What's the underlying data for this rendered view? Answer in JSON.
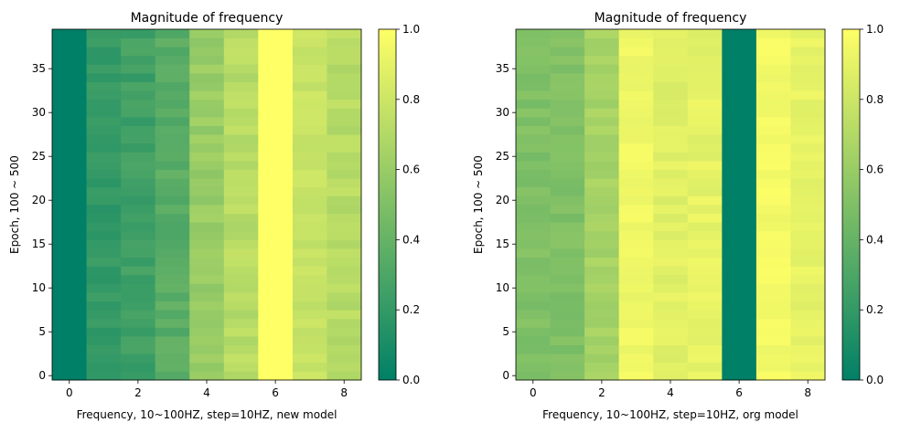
{
  "chart_data": [
    {
      "type": "heatmap",
      "title": "Magnitude of frequency",
      "xlabel": "Frequency, 10~100HZ, step=10HZ, new model",
      "ylabel": "Epoch, 100 ~ 500",
      "x_range": [
        -0.5,
        8.5
      ],
      "y_range": [
        -0.5,
        39.5
      ],
      "x_ticks": [
        0,
        2,
        4,
        6,
        8
      ],
      "y_ticks": [
        0,
        5,
        10,
        15,
        20,
        25,
        30,
        35
      ],
      "colorbar": {
        "range": [
          0,
          1
        ],
        "ticks": [
          0.0,
          0.2,
          0.4,
          0.6,
          0.8,
          1.0
        ],
        "tick_labels": [
          "0.0",
          "0.2",
          "0.4",
          "0.6",
          "0.8",
          "1.0"
        ],
        "colormap": "summer"
      },
      "column_base": [
        0.0,
        0.2,
        0.25,
        0.35,
        0.6,
        0.72,
        1.0,
        0.78,
        0.72
      ],
      "amplitude": [
        0.0,
        0.045,
        0.06,
        0.05,
        0.05,
        0.05,
        0.0,
        0.04,
        0.05
      ],
      "seed": 7,
      "n_rows": 40
    },
    {
      "type": "heatmap",
      "title": "Magnitude of frequency",
      "xlabel": "Frequency, 10~100HZ, step=10HZ, org model",
      "ylabel": "Epoch, 100 ~ 500",
      "x_range": [
        -0.5,
        8.5
      ],
      "y_range": [
        -0.5,
        39.5
      ],
      "x_ticks": [
        0,
        2,
        4,
        6,
        8
      ],
      "y_ticks": [
        0,
        5,
        10,
        15,
        20,
        25,
        30,
        35
      ],
      "colorbar": {
        "range": [
          0,
          1
        ],
        "ticks": [
          0.0,
          0.2,
          0.4,
          0.6,
          0.8,
          1.0
        ],
        "tick_labels": [
          "0.0",
          "0.2",
          "0.4",
          "0.6",
          "0.8",
          "1.0"
        ],
        "colormap": "summer"
      },
      "column_base": [
        0.5,
        0.5,
        0.65,
        0.94,
        0.88,
        0.9,
        0.0,
        0.96,
        0.9
      ],
      "amplitude": [
        0.04,
        0.04,
        0.04,
        0.03,
        0.04,
        0.04,
        0.0,
        0.03,
        0.04
      ],
      "seed": 13,
      "n_rows": 40
    }
  ]
}
